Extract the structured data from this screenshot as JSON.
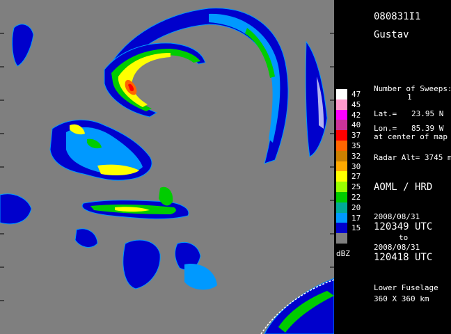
{
  "header": {
    "flight_id": "080831I1",
    "storm_name": "Gustav"
  },
  "info": {
    "sweeps_label": "Number of Sweeps:",
    "sweeps_value": "1",
    "lat_label": "Lat.=",
    "lat_value": "23.95 N",
    "lon_label": "Lon.=",
    "lon_value": "85.39 W",
    "center_note": "at center of map",
    "radar_alt": "Radar Alt= 3745 m",
    "agency": "AOML / HRD",
    "start_date": "2008/08/31",
    "start_time": "120349 UTC",
    "to_label": "to",
    "end_date": "2008/08/31",
    "end_time": "120418 UTC",
    "radar_name": "Lower Fuselage",
    "extent": "360 X 360 km"
  },
  "legend": {
    "unit": "dBZ",
    "entries": [
      {
        "label": "47",
        "color": "#ffffff"
      },
      {
        "label": "45",
        "color": "#ff99cc"
      },
      {
        "label": "42",
        "color": "#ff00ff"
      },
      {
        "label": "40",
        "color": "#cc3399"
      },
      {
        "label": "37",
        "color": "#ff0000"
      },
      {
        "label": "35",
        "color": "#ff6600"
      },
      {
        "label": "32",
        "color": "#cc8000"
      },
      {
        "label": "30",
        "color": "#ffaa00"
      },
      {
        "label": "27",
        "color": "#ffff00"
      },
      {
        "label": "25",
        "color": "#99ff00"
      },
      {
        "label": "22",
        "color": "#00cc00"
      },
      {
        "label": "20",
        "color": "#00aa99"
      },
      {
        "label": "17",
        "color": "#0099ff"
      },
      {
        "label": "15",
        "color": "#0000cc"
      },
      {
        "label": "",
        "color": "#7f7f7f"
      }
    ]
  }
}
